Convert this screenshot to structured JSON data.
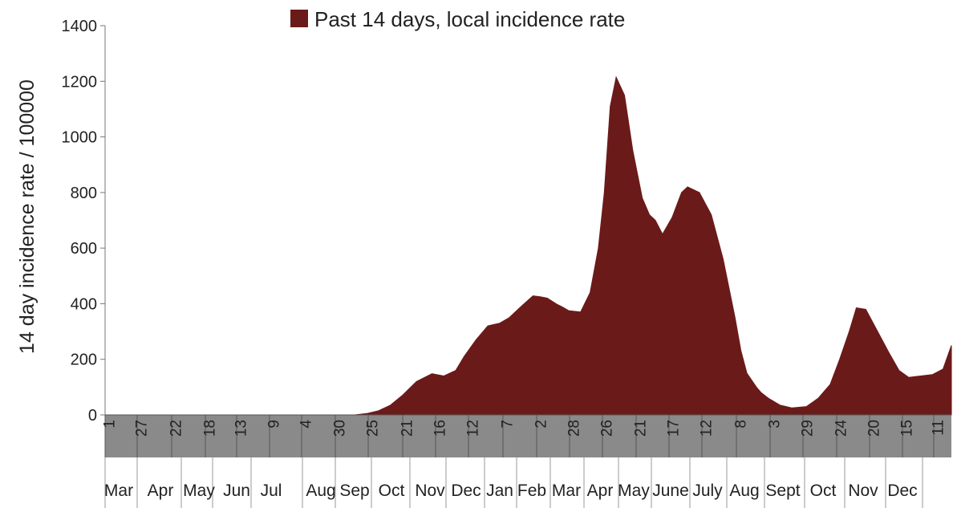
{
  "chart_data": {
    "type": "area",
    "title": "",
    "xlabel": "",
    "ylabel": "14 day incidence rate / 100000",
    "ylim": [
      0,
      1400
    ],
    "yticks": [
      0,
      200,
      400,
      600,
      800,
      1000,
      1200,
      1400
    ],
    "legend": {
      "position": "top",
      "entries": [
        "Past 14 days, local incidence rate"
      ]
    },
    "grid": false,
    "colors": {
      "area": "#6b1a1a",
      "axis_band": "#8a8a8a"
    },
    "x_day_labels": [
      "1",
      "27",
      "22",
      "18",
      "13",
      "9",
      "4",
      "30",
      "25",
      "21",
      "16",
      "12",
      "7",
      "2",
      "28",
      "26",
      "21",
      "17",
      "12",
      "8",
      "3",
      "29",
      "24",
      "20",
      "15",
      "11"
    ],
    "x_month_labels": [
      "Mar",
      "Apr",
      "May",
      "Jun",
      "Jul",
      "Aug",
      "Sep",
      "Oct",
      "Nov",
      "Dec",
      "Jan",
      "Feb",
      "Mar",
      "Apr",
      "May",
      "June",
      "July",
      "Aug",
      "Sept",
      "Oct",
      "Nov",
      "Dec"
    ],
    "series": [
      {
        "name": "Past 14 days, local incidence rate",
        "x_day_index": [
          0,
          210,
          220,
          230,
          240,
          250,
          262,
          275,
          285,
          295,
          302,
          312,
          322,
          327,
          332,
          340,
          350,
          360,
          366,
          372,
          380,
          384,
          390,
          400,
          408,
          415,
          420,
          425,
          430,
          437,
          444,
          452,
          458,
          463,
          469,
          477,
          485,
          490,
          500,
          510,
          520,
          530,
          535,
          540,
          548,
          552,
          558,
          568,
          578,
          590,
          600,
          610,
          618,
          626,
          632,
          640,
          650,
          660,
          668,
          676,
          686,
          696,
          705,
          712
        ],
        "values": [
          0,
          0,
          5,
          15,
          35,
          70,
          120,
          148,
          140,
          160,
          210,
          270,
          320,
          325,
          330,
          350,
          390,
          428,
          425,
          420,
          398,
          390,
          375,
          370,
          440,
          600,
          800,
          1110,
          1215,
          1150,
          950,
          780,
          720,
          700,
          650,
          710,
          800,
          820,
          800,
          720,
          560,
          350,
          230,
          150,
          100,
          80,
          60,
          35,
          25,
          30,
          60,
          110,
          200,
          300,
          385,
          380,
          300,
          220,
          160,
          135,
          140,
          145,
          165,
          250
        ],
        "note": ""
      }
    ]
  }
}
